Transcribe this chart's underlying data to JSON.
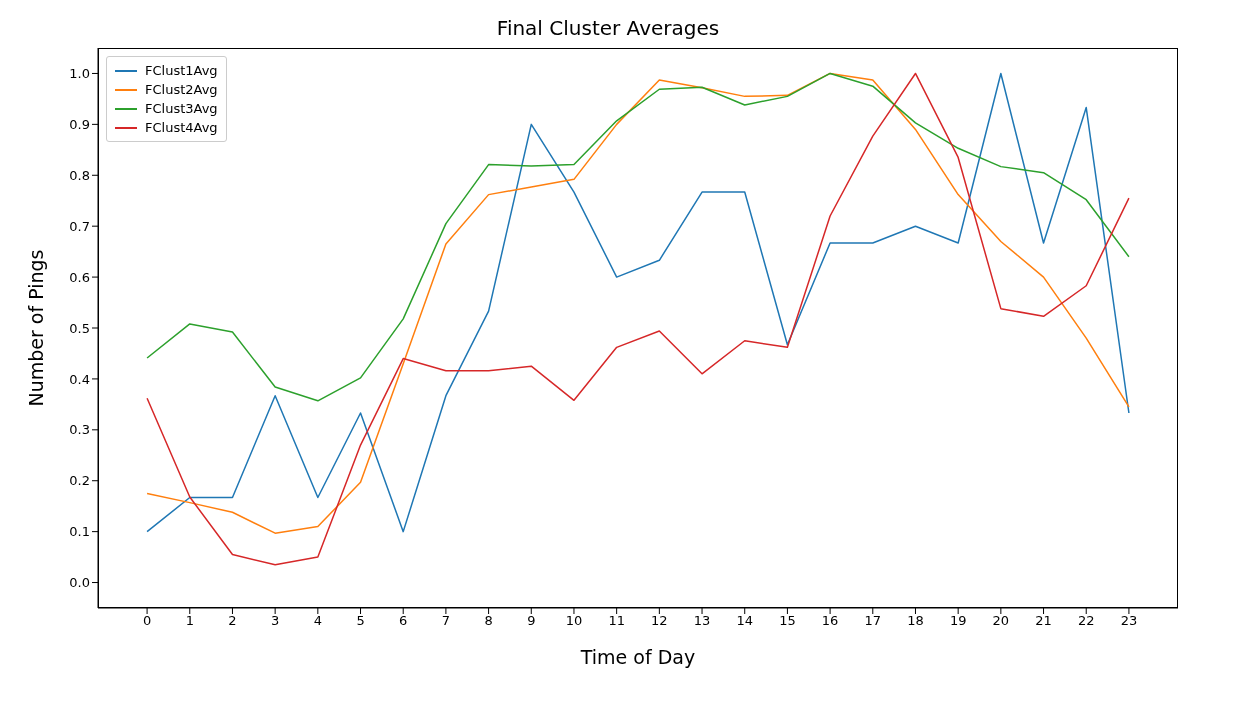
{
  "chart_data": {
    "type": "line",
    "title": "Final Cluster Averages",
    "xlabel": "Time of Day",
    "ylabel": "Number of Pings",
    "x": [
      0,
      1,
      2,
      3,
      4,
      5,
      6,
      7,
      8,
      9,
      10,
      11,
      12,
      13,
      14,
      15,
      16,
      17,
      18,
      19,
      20,
      21,
      22,
      23
    ],
    "series": [
      {
        "name": "FClust1Avg",
        "color": "#1f77b4",
        "values": [
          0.1,
          0.167,
          0.167,
          0.367,
          0.167,
          0.333,
          0.1,
          0.367,
          0.533,
          0.9,
          0.767,
          0.6,
          0.633,
          0.767,
          0.767,
          0.467,
          0.667,
          0.667,
          0.7,
          0.667,
          1.0,
          0.667,
          0.933,
          0.333
        ]
      },
      {
        "name": "FClust2Avg",
        "color": "#ff7f0e",
        "values": [
          0.175,
          0.157,
          0.138,
          0.097,
          0.11,
          0.197,
          0.43,
          0.665,
          0.762,
          0.777,
          0.792,
          0.9,
          0.987,
          0.972,
          0.955,
          0.957,
          1.0,
          0.987,
          0.89,
          0.762,
          0.67,
          0.6,
          0.48,
          0.345
        ]
      },
      {
        "name": "FClust3Avg",
        "color": "#2ca02c",
        "values": [
          0.441,
          0.508,
          0.492,
          0.384,
          0.357,
          0.402,
          0.518,
          0.705,
          0.821,
          0.818,
          0.821,
          0.907,
          0.969,
          0.973,
          0.938,
          0.955,
          1.0,
          0.975,
          0.903,
          0.853,
          0.817,
          0.805,
          0.752,
          0.64
        ]
      },
      {
        "name": "FClust4Avg",
        "color": "#d62728",
        "values": [
          0.362,
          0.168,
          0.055,
          0.035,
          0.05,
          0.27,
          0.44,
          0.416,
          0.416,
          0.425,
          0.358,
          0.462,
          0.494,
          0.41,
          0.475,
          0.462,
          0.72,
          0.877,
          1.0,
          0.835,
          0.538,
          0.523,
          0.583,
          0.755
        ]
      }
    ],
    "xlim": [
      -1.15,
      24.15
    ],
    "xticks": [
      0,
      1,
      2,
      3,
      4,
      5,
      6,
      7,
      8,
      9,
      10,
      11,
      12,
      13,
      14,
      15,
      16,
      17,
      18,
      19,
      20,
      21,
      22,
      23
    ],
    "ylim": [
      -0.05,
      1.05
    ],
    "yticks": [
      {
        "value": 0,
        "label": "0.0"
      },
      {
        "value": 0.1,
        "label": "0.1"
      },
      {
        "value": 0.2,
        "label": "0.2"
      },
      {
        "value": 0.3,
        "label": "0.3"
      },
      {
        "value": 0.4,
        "label": "0.4"
      },
      {
        "value": 0.5,
        "label": "0.5"
      },
      {
        "value": 0.6,
        "label": "0.6"
      },
      {
        "value": 0.7,
        "label": "0.7"
      },
      {
        "value": 0.8,
        "label": "0.8"
      },
      {
        "value": 0.9,
        "label": "0.9"
      },
      {
        "value": 1.0,
        "label": "1.0"
      }
    ],
    "grid": false,
    "legend": "top left",
    "marker": "none",
    "line_style": "solid"
  }
}
